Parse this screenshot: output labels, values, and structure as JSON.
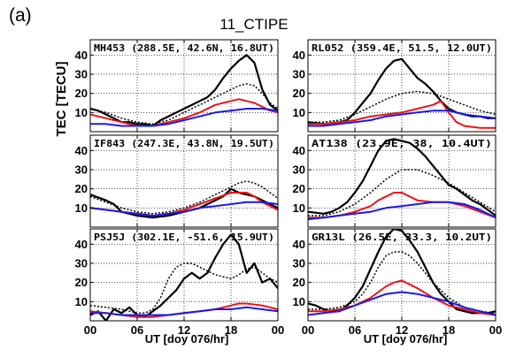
{
  "figure": {
    "panel_label": "(a)",
    "title": "11_CTIPE"
  },
  "chart_data": {
    "type": "line",
    "layout": "3x2 grid of panels",
    "shared_xlabel": "UT [doy 076/hr]",
    "shared_ylabel": "TEC [TECU]",
    "x_ticks": [
      "00",
      "06",
      "12",
      "18",
      "00"
    ],
    "x_tick_values": [
      0,
      6,
      12,
      18,
      24
    ],
    "xlim": [
      0,
      24
    ],
    "ylim": [
      0,
      48
    ],
    "y_ticks": [
      10,
      20,
      30,
      40
    ],
    "grid": true,
    "series_styles": [
      {
        "key": "black_solid",
        "color": "#000000",
        "dash": "",
        "width": 2.2
      },
      {
        "key": "black_dotted",
        "color": "#000000",
        "dash": "2,2",
        "width": 1.5
      },
      {
        "key": "red",
        "color": "#e8141c",
        "dash": "",
        "width": 2
      },
      {
        "key": "blue",
        "color": "#1a1ae6",
        "dash": "",
        "width": 2
      }
    ],
    "panels": [
      {
        "label": "MH453 (288.5E, 42.6N, 16.8UT)",
        "series": [
          {
            "style": "black_solid",
            "x": [
              0,
              1,
              2,
              3,
              4,
              5,
              6,
              7,
              8,
              9,
              10,
              11,
              12,
              13,
              14,
              15,
              16,
              17,
              18,
              19,
              20,
              21,
              22,
              23,
              24
            ],
            "values": [
              12,
              11,
              9,
              7,
              5,
              5,
              4,
              4,
              3,
              6,
              8,
              10,
              12,
              14,
              16,
              18,
              22,
              28,
              33,
              37,
              40,
              36,
              22,
              14,
              11
            ]
          },
          {
            "style": "black_dotted",
            "x": [
              0,
              2,
              4,
              6,
              8,
              10,
              12,
              14,
              16,
              18,
              19,
              20,
              21,
              22,
              23,
              24
            ],
            "values": [
              12,
              10,
              7,
              5,
              4,
              6,
              10,
              14,
              18,
              22,
              24,
              25,
              24,
              20,
              15,
              12
            ]
          },
          {
            "style": "red",
            "x": [
              0,
              2,
              4,
              6,
              8,
              10,
              12,
              14,
              16,
              18,
              19,
              20,
              21,
              22,
              23,
              24
            ],
            "values": [
              9,
              7,
              5,
              3,
              3,
              5,
              7,
              10,
              14,
              16,
              17,
              16,
              15,
              13,
              11,
              10
            ]
          },
          {
            "style": "blue",
            "x": [
              0,
              2,
              4,
              6,
              8,
              10,
              12,
              14,
              16,
              18,
              20,
              22,
              24
            ],
            "values": [
              4,
              4,
              3,
              3,
              3,
              4,
              6,
              8,
              10,
              11,
              12,
              12,
              11
            ]
          }
        ]
      },
      {
        "label": "RL052 (359.4E, 51.5, 12.0UT)",
        "series": [
          {
            "style": "black_solid",
            "x": [
              0,
              2,
              4,
              5,
              6,
              7,
              8,
              9,
              10,
              11,
              12,
              13,
              14,
              15,
              16,
              17,
              18,
              19,
              20,
              21,
              22,
              23,
              24
            ],
            "values": [
              5,
              4,
              5,
              6,
              10,
              15,
              20,
              27,
              33,
              37,
              38,
              33,
              28,
              25,
              21,
              16,
              12,
              10,
              9,
              8,
              8,
              7,
              7
            ]
          },
          {
            "style": "black_dotted",
            "x": [
              0,
              2,
              4,
              6,
              8,
              10,
              12,
              14,
              16,
              18,
              20,
              22,
              24
            ],
            "values": [
              5,
              5,
              6,
              9,
              13,
              17,
              20,
              21,
              20,
              17,
              14,
              11,
              9
            ]
          },
          {
            "style": "red",
            "x": [
              0,
              2,
              4,
              6,
              8,
              10,
              12,
              14,
              16,
              17,
              18,
              19,
              20,
              22,
              24
            ],
            "values": [
              4,
              4,
              5,
              6,
              8,
              9,
              10,
              12,
              14,
              16,
              10,
              5,
              3,
              2,
              2
            ]
          },
          {
            "style": "blue",
            "x": [
              0,
              2,
              4,
              6,
              8,
              10,
              12,
              14,
              16,
              18,
              20,
              22,
              24
            ],
            "values": [
              3,
              3,
              4,
              5,
              6,
              8,
              9,
              10,
              11,
              11,
              9,
              8,
              7
            ]
          }
        ]
      },
      {
        "label": "IF843 (247.3E, 43.8N, 19.5UT)",
        "series": [
          {
            "style": "black_solid",
            "x": [
              0,
              2,
              3,
              4,
              6,
              8,
              10,
              12,
              14,
              16,
              17,
              18,
              19,
              20,
              21,
              22,
              23,
              24
            ],
            "values": [
              17,
              14,
              12,
              8,
              6,
              5,
              6,
              8,
              10,
              14,
              16,
              20,
              18,
              17,
              16,
              14,
              12,
              10
            ]
          },
          {
            "style": "black_dotted",
            "x": [
              0,
              2,
              4,
              6,
              8,
              10,
              12,
              14,
              16,
              18,
              19,
              20,
              21,
              22,
              23,
              24
            ],
            "values": [
              16,
              13,
              10,
              8,
              7,
              8,
              10,
              13,
              17,
              21,
              23,
              24,
              23,
              21,
              18,
              15
            ]
          },
          {
            "style": "red",
            "x": [
              0,
              2,
              4,
              6,
              8,
              10,
              12,
              14,
              16,
              18,
              20,
              21,
              22,
              23,
              24
            ],
            "values": [
              10,
              9,
              8,
              7,
              6,
              7,
              9,
              12,
              15,
              18,
              18,
              16,
              13,
              11,
              9
            ]
          },
          {
            "style": "blue",
            "x": [
              0,
              2,
              4,
              6,
              8,
              10,
              12,
              14,
              16,
              18,
              20,
              22,
              24
            ],
            "values": [
              10,
              9,
              8,
              7,
              6,
              7,
              8,
              10,
              11,
              12,
              13,
              13,
              12
            ]
          }
        ]
      },
      {
        "label": "AT138 (23.9E, 38, 10.4UT)",
        "series": [
          {
            "style": "black_solid",
            "x": [
              0,
              2,
              3,
              4,
              5,
              6,
              7,
              8,
              9,
              10,
              11,
              12,
              13,
              14,
              15,
              16,
              17,
              18,
              19,
              20,
              21,
              22,
              23,
              24
            ],
            "values": [
              8,
              7,
              8,
              10,
              13,
              18,
              24,
              32,
              40,
              45,
              46,
              45,
              44,
              41,
              37,
              32,
              27,
              22,
              20,
              17,
              14,
              12,
              9,
              6
            ]
          },
          {
            "style": "black_dotted",
            "x": [
              0,
              2,
              4,
              6,
              8,
              10,
              12,
              14,
              16,
              18,
              20,
              22,
              24
            ],
            "values": [
              6,
              6,
              8,
              12,
              18,
              25,
              30,
              30,
              27,
              23,
              18,
              13,
              8
            ]
          },
          {
            "style": "red",
            "x": [
              0,
              2,
              4,
              6,
              8,
              9,
              10,
              11,
              12,
              13,
              14,
              16,
              18,
              20,
              22,
              24
            ],
            "values": [
              5,
              5,
              6,
              8,
              11,
              14,
              16,
              18,
              18,
              16,
              14,
              13,
              13,
              11,
              8,
              5
            ]
          },
          {
            "style": "blue",
            "x": [
              0,
              2,
              4,
              6,
              8,
              10,
              12,
              14,
              16,
              18,
              20,
              22,
              24
            ],
            "values": [
              4,
              5,
              6,
              7,
              8,
              10,
              11,
              12,
              13,
              13,
              12,
              9,
              5
            ]
          }
        ]
      },
      {
        "label": "PSJ5J (302.1E, -51.6, 15.9UT)",
        "series": [
          {
            "style": "black_solid",
            "x": [
              0,
              1,
              2,
              3,
              4,
              5,
              6,
              7,
              8,
              9,
              10,
              11,
              12,
              13,
              14,
              15,
              16,
              17,
              18,
              19,
              20,
              21,
              22,
              23,
              24
            ],
            "values": [
              3,
              5,
              0,
              6,
              4,
              7,
              3,
              2,
              5,
              8,
              12,
              16,
              22,
              25,
              22,
              25,
              33,
              40,
              45,
              40,
              25,
              30,
              20,
              22,
              17
            ]
          },
          {
            "style": "black_dotted",
            "x": [
              0,
              2,
              4,
              6,
              7,
              8,
              9,
              10,
              11,
              12,
              13,
              14,
              16,
              18,
              19,
              20,
              21,
              22,
              23,
              24
            ],
            "values": [
              8,
              7,
              6,
              4,
              4,
              6,
              12,
              22,
              28,
              30,
              30,
              28,
              24,
              22,
              24,
              27,
              28,
              25,
              22,
              20
            ]
          },
          {
            "style": "red",
            "x": [
              0,
              2,
              4,
              6,
              8,
              10,
              12,
              14,
              16,
              18,
              19,
              20,
              22,
              24
            ],
            "values": [
              5,
              4,
              3,
              2,
              2,
              3,
              4,
              5,
              6,
              8,
              9,
              9,
              8,
              6
            ]
          },
          {
            "style": "blue",
            "x": [
              0,
              2,
              4,
              6,
              8,
              10,
              12,
              14,
              16,
              18,
              20,
              22,
              24
            ],
            "values": [
              4,
              4,
              3,
              3,
              3,
              3,
              4,
              5,
              6,
              6,
              7,
              6,
              5
            ]
          }
        ]
      },
      {
        "label": "GR13L (26.5E, 33.3, 10.2UT)",
        "series": [
          {
            "style": "black_solid",
            "x": [
              0,
              1,
              2,
              3,
              4,
              5,
              6,
              7,
              8,
              9,
              10,
              11,
              12,
              13,
              14,
              15,
              16,
              17,
              18,
              19,
              20,
              21,
              22,
              23,
              24
            ],
            "values": [
              9,
              8,
              6,
              5,
              5,
              8,
              12,
              18,
              27,
              36,
              44,
              48,
              47,
              42,
              36,
              28,
              20,
              14,
              10,
              6,
              5,
              4,
              4,
              4,
              5
            ]
          },
          {
            "style": "black_dotted",
            "x": [
              0,
              2,
              4,
              6,
              7,
              8,
              9,
              10,
              11,
              12,
              13,
              14,
              16,
              18,
              20,
              22,
              24
            ],
            "values": [
              6,
              6,
              7,
              10,
              14,
              20,
              28,
              34,
              36,
              36,
              34,
              30,
              20,
              12,
              7,
              5,
              4
            ]
          },
          {
            "style": "red",
            "x": [
              0,
              2,
              4,
              6,
              8,
              10,
              11,
              12,
              13,
              14,
              16,
              18,
              20,
              22,
              24
            ],
            "values": [
              5,
              5,
              6,
              8,
              12,
              18,
              20,
              21,
              19,
              17,
              12,
              8,
              6,
              4,
              3
            ]
          },
          {
            "style": "blue",
            "x": [
              0,
              2,
              4,
              6,
              8,
              10,
              12,
              14,
              16,
              18,
              20,
              22,
              24
            ],
            "values": [
              3,
              4,
              5,
              8,
              11,
              14,
              15,
              14,
              12,
              10,
              7,
              5,
              3
            ]
          }
        ]
      }
    ]
  }
}
